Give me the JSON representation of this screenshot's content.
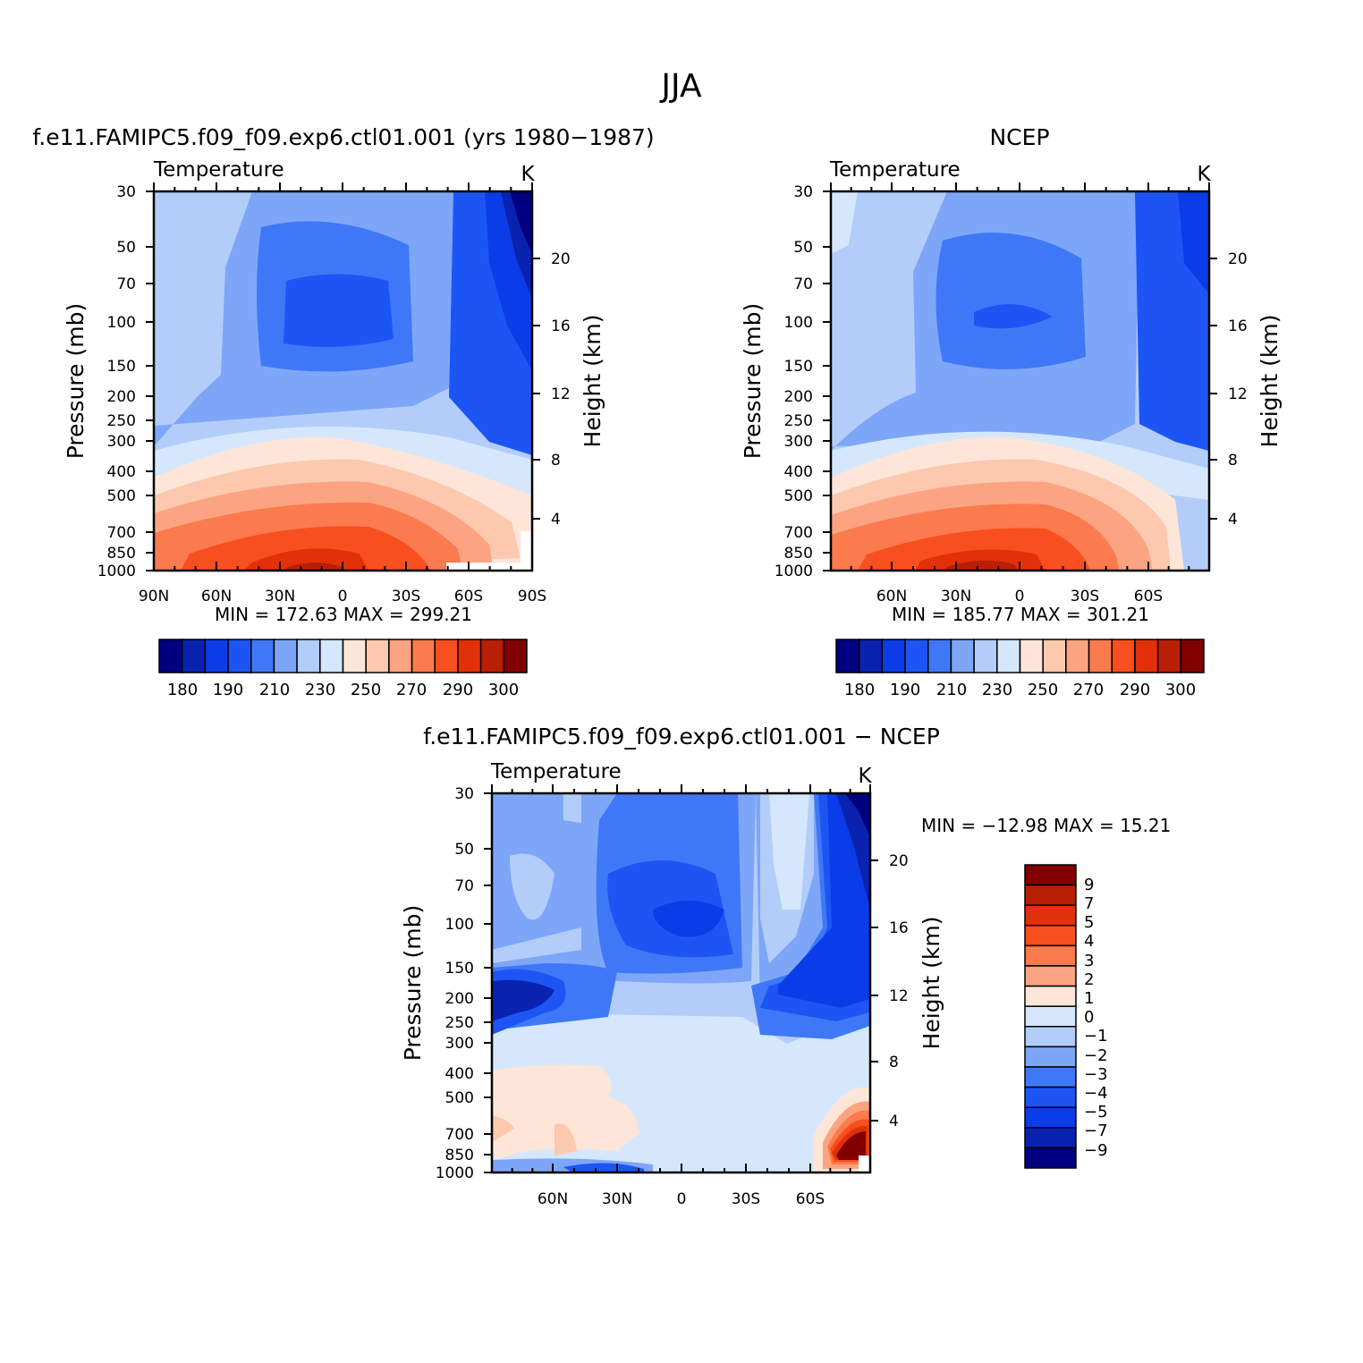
{
  "figure": {
    "title": "JJA"
  },
  "chart_data": [
    {
      "type": "heatmap",
      "panel_title": "f.e11.FAMIPC5.f09_f09.exp6.ctl01.001 (yrs 1980−1987)",
      "variable_label": "Temperature",
      "units": "K",
      "ylabel": "Pressure (mb)",
      "y2label": "Height (km)",
      "x_ticks": [
        "90N",
        "60N",
        "30N",
        "0",
        "30S",
        "60S",
        "90S"
      ],
      "y_ticks": [
        "30",
        "50",
        "70",
        "100",
        "150",
        "200",
        "250",
        "300",
        "400",
        "500",
        "700",
        "850",
        "1000"
      ],
      "y2_ticks": [
        "20",
        "16",
        "12",
        "8",
        "4"
      ],
      "min_max_text": "MIN = 172.63 MAX = 299.21",
      "min": 172.63,
      "max": 299.21,
      "colorbar_labels": [
        "180",
        "190",
        "210",
        "230",
        "250",
        "270",
        "290",
        "300"
      ]
    },
    {
      "type": "heatmap",
      "panel_title": "NCEP",
      "variable_label": "Temperature",
      "units": "K",
      "ylabel": "Pressure (mb)",
      "y2label": "Height (km)",
      "x_ticks": [
        "60N",
        "30N",
        "0",
        "30S",
        "60S"
      ],
      "y_ticks": [
        "30",
        "50",
        "70",
        "100",
        "150",
        "200",
        "250",
        "300",
        "400",
        "500",
        "700",
        "850",
        "1000"
      ],
      "y2_ticks": [
        "20",
        "16",
        "12",
        "8",
        "4"
      ],
      "min_max_text": "MIN = 185.77 MAX = 301.21",
      "min": 185.77,
      "max": 301.21,
      "colorbar_labels": [
        "180",
        "190",
        "210",
        "230",
        "250",
        "270",
        "290",
        "300"
      ]
    },
    {
      "type": "heatmap",
      "panel_title": "f.e11.FAMIPC5.f09_f09.exp6.ctl01.001 − NCEP",
      "variable_label": "Temperature",
      "units": "K",
      "ylabel": "Pressure (mb)",
      "y2label": "Height (km)",
      "x_ticks": [
        "60N",
        "30N",
        "0",
        "30S",
        "60S"
      ],
      "y_ticks": [
        "30",
        "50",
        "70",
        "100",
        "150",
        "200",
        "250",
        "300",
        "400",
        "500",
        "700",
        "850",
        "1000"
      ],
      "y2_ticks": [
        "20",
        "16",
        "12",
        "8",
        "4"
      ],
      "min_max_text": "MIN = −12.98 MAX = 15.21",
      "min": -12.98,
      "max": 15.21,
      "colorbar_labels": [
        "9",
        "7",
        "5",
        "4",
        "3",
        "2",
        "1",
        "0",
        "−1",
        "−2",
        "−3",
        "−4",
        "−5",
        "−7",
        "−9"
      ]
    }
  ],
  "colors": {
    "abs_scale": [
      "#000080",
      "#0a22b0",
      "#0a3de8",
      "#1d55f5",
      "#3f78f7",
      "#7ea6f8",
      "#b3cdfb",
      "#d5e7fc",
      "#fde6d8",
      "#fcc8ae",
      "#fca482",
      "#fb7a4e",
      "#f84f1f",
      "#e23008",
      "#b81f04",
      "#800000"
    ],
    "diff_scale": [
      "#800000",
      "#b81f04",
      "#e23008",
      "#f84f1f",
      "#fb7a4e",
      "#fca482",
      "#fde6d8",
      "#d5e7fc",
      "#b3cdfb",
      "#7ea6f8",
      "#3f78f7",
      "#1d55f5",
      "#0a3de8",
      "#0a22b0",
      "#000080"
    ]
  }
}
